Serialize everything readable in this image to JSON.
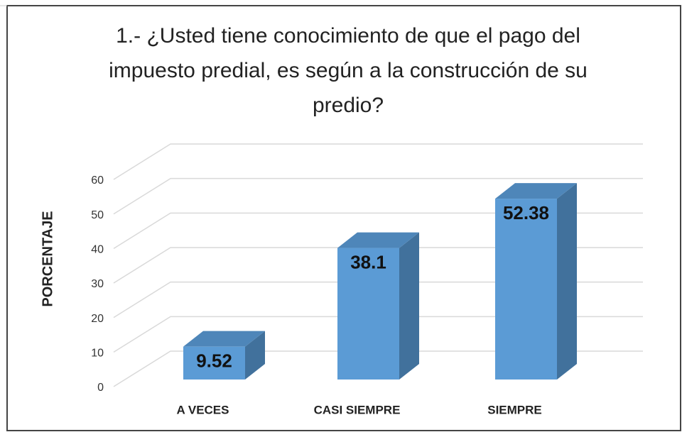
{
  "chart_data": {
    "type": "bar3d",
    "title": "1.- ¿Usted tiene conocimiento de que el pago del impuesto predial, es según a la construcción de su predio?",
    "y_label": "PORCENTAJE",
    "categories": [
      "A VECES",
      "CASI SIEMPRE",
      "SIEMPRE"
    ],
    "values": [
      9.52,
      38.1,
      52.38
    ],
    "color": "#5b9bd5",
    "ylim": [
      0,
      60
    ],
    "yticks": [
      0,
      10,
      20,
      30,
      40,
      50,
      60
    ],
    "grid": true
  }
}
